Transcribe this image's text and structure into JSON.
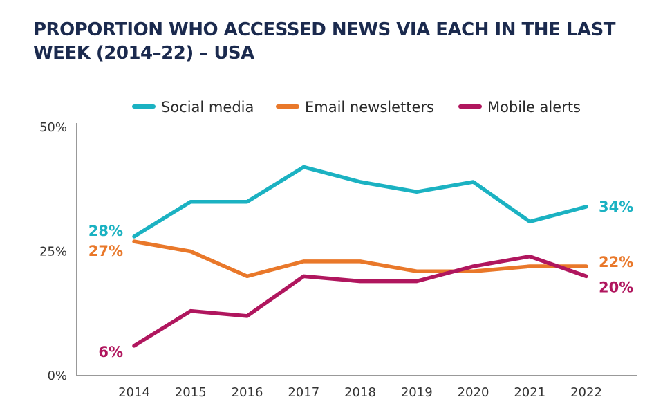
{
  "chart_data": {
    "type": "line",
    "title": "PROPORTION WHO ACCESSED NEWS VIA EACH IN THE LAST WEEK (2014–22) – USA",
    "x": [
      "2014",
      "2015",
      "2016",
      "2017",
      "2018",
      "2019",
      "2020",
      "2021",
      "2022"
    ],
    "ylim": [
      0,
      50
    ],
    "yticks": [
      0,
      25,
      50
    ],
    "ytick_labels": [
      "0%",
      "25%",
      "50%"
    ],
    "grid": false,
    "legend_position": "top",
    "series": [
      {
        "name": "Social media",
        "color": "#1bb2c2",
        "values": [
          28,
          35,
          35,
          42,
          39,
          37,
          39,
          31,
          34
        ],
        "start_label": "28%",
        "end_label": "34%"
      },
      {
        "name": "Email newsletters",
        "color": "#e9782a",
        "values": [
          27,
          25,
          20,
          23,
          23,
          21,
          21,
          22,
          22
        ],
        "start_label": "27%",
        "end_label": "22%"
      },
      {
        "name": "Mobile alerts",
        "color": "#b0165e",
        "values": [
          6,
          13,
          12,
          20,
          19,
          19,
          22,
          24,
          20
        ],
        "start_label": "6%",
        "end_label": "20%"
      }
    ]
  }
}
